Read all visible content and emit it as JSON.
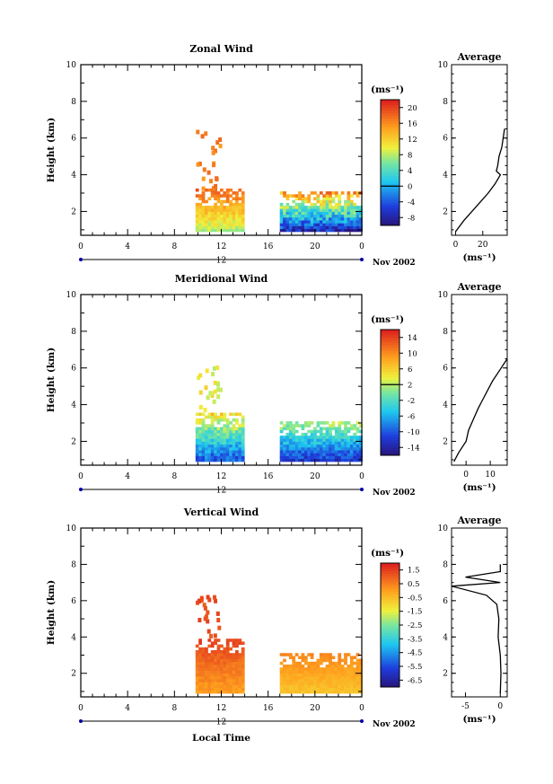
{
  "chart_data": [
    {
      "type": "heatmap",
      "title": "Zonal Wind",
      "xlabel": "",
      "ylabel": "Height (km)",
      "xlim": [
        0,
        24
      ],
      "ylim": [
        0.7,
        10
      ],
      "xticks": [
        "0",
        "4",
        "8",
        "12",
        "16",
        "20",
        "0"
      ],
      "yticks": [
        "2",
        "4",
        "6",
        "8",
        "10"
      ],
      "date_axis": {
        "day": "12",
        "month_year": "Nov 2002"
      },
      "colorbar": {
        "unit": "(ms⁻¹)",
        "ticks": [
          "-8",
          "-4",
          "0",
          "4",
          "8",
          "12",
          "16",
          "20"
        ],
        "vmin": -10,
        "vmax": 22
      },
      "blocks": [
        {
          "t_start": 9.8,
          "t_end": 13.8,
          "top_km": 3.1,
          "hi": 18,
          "lo": 8
        },
        {
          "t_start": 17.0,
          "t_end": 24.0,
          "top_km": 3.0,
          "hi": 16,
          "lo": -7
        }
      ],
      "average_profile": {
        "title": "Average",
        "xlabel": "(ms⁻¹)",
        "xticks": [
          "0",
          "20"
        ],
        "xlim": [
          -3,
          38
        ],
        "height_km": [
          0.9,
          1.5,
          2.0,
          2.5,
          3.0,
          3.5,
          4.0,
          4.2,
          4.5,
          5.0,
          5.5,
          6.0,
          6.5
        ],
        "speed": [
          0,
          6,
          12,
          18,
          24,
          29,
          33,
          30,
          31,
          32,
          34,
          35,
          36
        ]
      }
    },
    {
      "type": "heatmap",
      "title": "Meridional Wind",
      "xlabel": "",
      "ylabel": "Height (km)",
      "xlim": [
        0,
        24
      ],
      "ylim": [
        0.7,
        10
      ],
      "xticks": [
        "0",
        "4",
        "8",
        "12",
        "16",
        "20",
        "0"
      ],
      "yticks": [
        "2",
        "4",
        "6",
        "8",
        "10"
      ],
      "date_axis": {
        "day": "12",
        "month_year": "Nov 2002"
      },
      "colorbar": {
        "unit": "(ms⁻¹)",
        "ticks": [
          "-14",
          "-10",
          "-6",
          "-2",
          "2",
          "6",
          "10",
          "14"
        ],
        "vmin": -16,
        "vmax": 16
      },
      "blocks": [
        {
          "t_start": 9.8,
          "t_end": 13.8,
          "top_km": 3.5,
          "hi": 6,
          "lo": -10
        },
        {
          "t_start": 17.0,
          "t_end": 24.0,
          "top_km": 3.0,
          "hi": 2,
          "lo": -12
        }
      ],
      "average_profile": {
        "title": "Average",
        "xlabel": "(ms⁻¹)",
        "xticks": [
          "0",
          "10"
        ],
        "xlim": [
          -6,
          17
        ],
        "height_km": [
          0.9,
          1.4,
          2.0,
          2.6,
          3.2,
          3.8,
          4.3,
          4.8,
          5.3,
          5.9,
          6.5
        ],
        "speed": [
          -5,
          -3,
          0,
          1,
          3,
          5,
          7,
          9,
          11,
          14,
          17
        ]
      }
    },
    {
      "type": "heatmap",
      "title": "Vertical Wind",
      "xlabel": "Local Time",
      "ylabel": "Height (km)",
      "xlim": [
        0,
        24
      ],
      "ylim": [
        0.7,
        10
      ],
      "xticks": [
        "0",
        "4",
        "8",
        "12",
        "16",
        "20",
        "0"
      ],
      "yticks": [
        "2",
        "4",
        "6",
        "8",
        "10"
      ],
      "date_axis": {
        "day": "12",
        "month_year": "Nov 2002"
      },
      "colorbar": {
        "unit": "(ms⁻¹)",
        "ticks": [
          "-6.5",
          "-5.5",
          "-4.5",
          "-3.5",
          "-2.5",
          "-1.5",
          "-0.5",
          "0.5",
          "1.5"
        ],
        "vmin": -7,
        "vmax": 2
      },
      "blocks": [
        {
          "t_start": 9.8,
          "t_end": 13.8,
          "top_km": 3.9,
          "hi": 1.5,
          "lo": 0
        },
        {
          "t_start": 17.0,
          "t_end": 24.0,
          "top_km": 3.0,
          "hi": 0.4,
          "lo": -0.6
        }
      ],
      "average_profile": {
        "title": "Average",
        "xlabel": "(ms⁻¹)",
        "xticks": [
          "-5",
          "0"
        ],
        "xlim": [
          -7,
          1
        ],
        "height_km": [
          0.9,
          2.0,
          3.0,
          4.0,
          5.0,
          5.8,
          6.3,
          6.8,
          7.0,
          7.3,
          7.6,
          8.0
        ],
        "speed": [
          0,
          0.1,
          0,
          -0.3,
          -0.2,
          -0.5,
          -2.0,
          -7.0,
          0,
          -5.0,
          0,
          0
        ]
      }
    }
  ]
}
